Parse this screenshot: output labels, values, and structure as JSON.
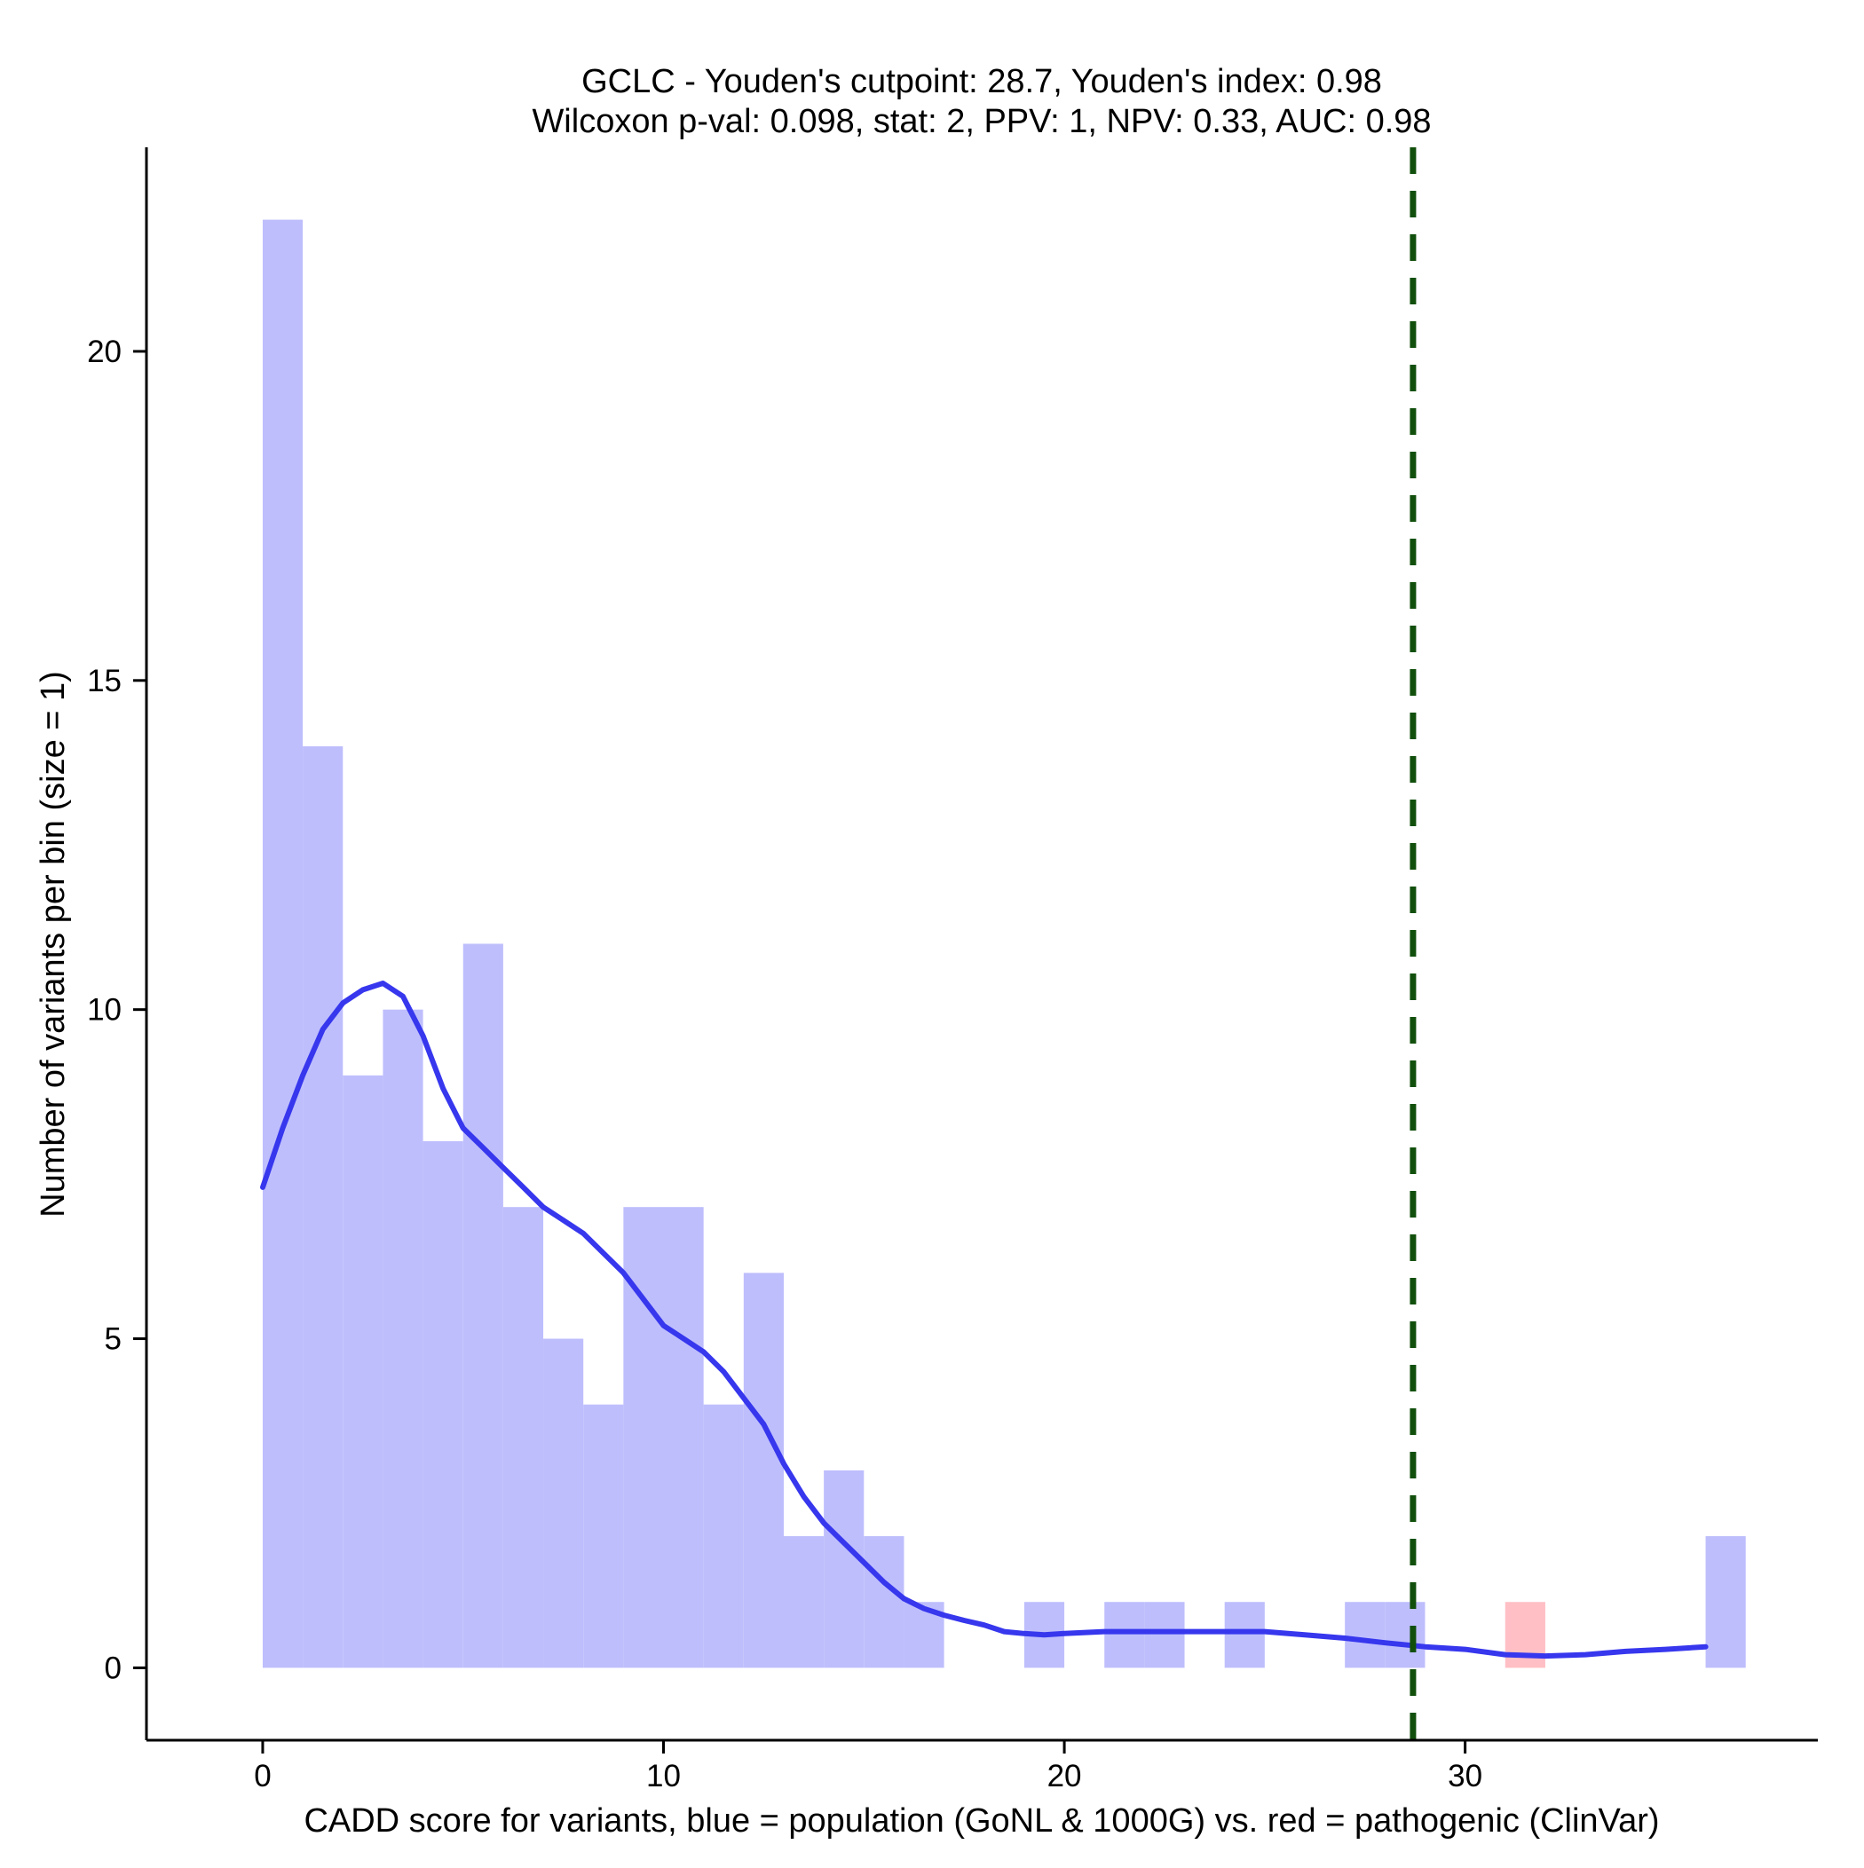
{
  "chart_data": {
    "type": "histogram",
    "title": "GCLC - Youden's cutpoint: 28.7, Youden's index: 0.98",
    "subtitle": "Wilcoxon p-val: 0.098, stat: 2, PPV: 1, NPV: 0.33, AUC: 0.98",
    "xlabel": "CADD score for variants, blue = population (GoNL & 1000G) vs. red = pathogenic (ClinVar)",
    "ylabel": "Number of variants per bin (size = 1)",
    "xlim": [
      -2.9,
      38.8
    ],
    "ylim": [
      -1.1,
      23.1
    ],
    "x_ticks": [
      0,
      10,
      20,
      30
    ],
    "y_ticks": [
      0,
      5,
      10,
      15,
      20
    ],
    "bin_width": 1,
    "colors": {
      "population": "#bebefd",
      "pathogenic": "#ffbfc4",
      "density": "#3737ee",
      "cutpoint": "#114f0c"
    },
    "series": [
      {
        "name": "population",
        "bins": [
          {
            "x0": 0,
            "count": 22
          },
          {
            "x0": 1,
            "count": 14
          },
          {
            "x0": 2,
            "count": 9
          },
          {
            "x0": 3,
            "count": 10
          },
          {
            "x0": 4,
            "count": 8
          },
          {
            "x0": 5,
            "count": 11
          },
          {
            "x0": 6,
            "count": 7
          },
          {
            "x0": 7,
            "count": 5
          },
          {
            "x0": 8,
            "count": 4
          },
          {
            "x0": 9,
            "count": 7
          },
          {
            "x0": 10,
            "count": 7
          },
          {
            "x0": 11,
            "count": 4
          },
          {
            "x0": 12,
            "count": 6
          },
          {
            "x0": 13,
            "count": 2
          },
          {
            "x0": 14,
            "count": 3
          },
          {
            "x0": 15,
            "count": 2
          },
          {
            "x0": 16,
            "count": 1
          },
          {
            "x0": 19,
            "count": 1
          },
          {
            "x0": 21,
            "count": 1
          },
          {
            "x0": 22,
            "count": 1
          },
          {
            "x0": 24,
            "count": 1
          },
          {
            "x0": 27,
            "count": 1
          },
          {
            "x0": 28,
            "count": 1
          },
          {
            "x0": 36,
            "count": 2
          }
        ]
      },
      {
        "name": "pathogenic",
        "bins": [
          {
            "x0": 31,
            "count": 1
          }
        ]
      }
    ],
    "density_curve": {
      "x": [
        0,
        0.5,
        1,
        1.5,
        2,
        2.5,
        3,
        3.5,
        4,
        4.5,
        5,
        5.5,
        6,
        6.5,
        7,
        7.5,
        8,
        8.5,
        9,
        9.5,
        10,
        10.5,
        11,
        11.5,
        12,
        12.5,
        13,
        13.5,
        14,
        14.5,
        15,
        15.5,
        16,
        16.5,
        17,
        17.5,
        18,
        18.5,
        19,
        19.5,
        20,
        21,
        22,
        23,
        24,
        25,
        26,
        27,
        28,
        29,
        30,
        31,
        32,
        33,
        34,
        35,
        36
      ],
      "y": [
        7.3,
        8.2,
        9.0,
        9.7,
        10.1,
        10.3,
        10.4,
        10.2,
        9.6,
        8.8,
        8.2,
        7.9,
        7.6,
        7.3,
        7.0,
        6.8,
        6.6,
        6.3,
        6.0,
        5.6,
        5.2,
        5.0,
        4.8,
        4.5,
        4.1,
        3.7,
        3.1,
        2.6,
        2.2,
        1.9,
        1.6,
        1.3,
        1.05,
        0.9,
        0.8,
        0.72,
        0.65,
        0.55,
        0.52,
        0.5,
        0.52,
        0.55,
        0.55,
        0.55,
        0.55,
        0.55,
        0.5,
        0.45,
        0.38,
        0.32,
        0.28,
        0.2,
        0.18,
        0.2,
        0.25,
        0.28,
        0.32
      ]
    },
    "cutpoint": 28.7,
    "grid": false,
    "legend": "none"
  }
}
